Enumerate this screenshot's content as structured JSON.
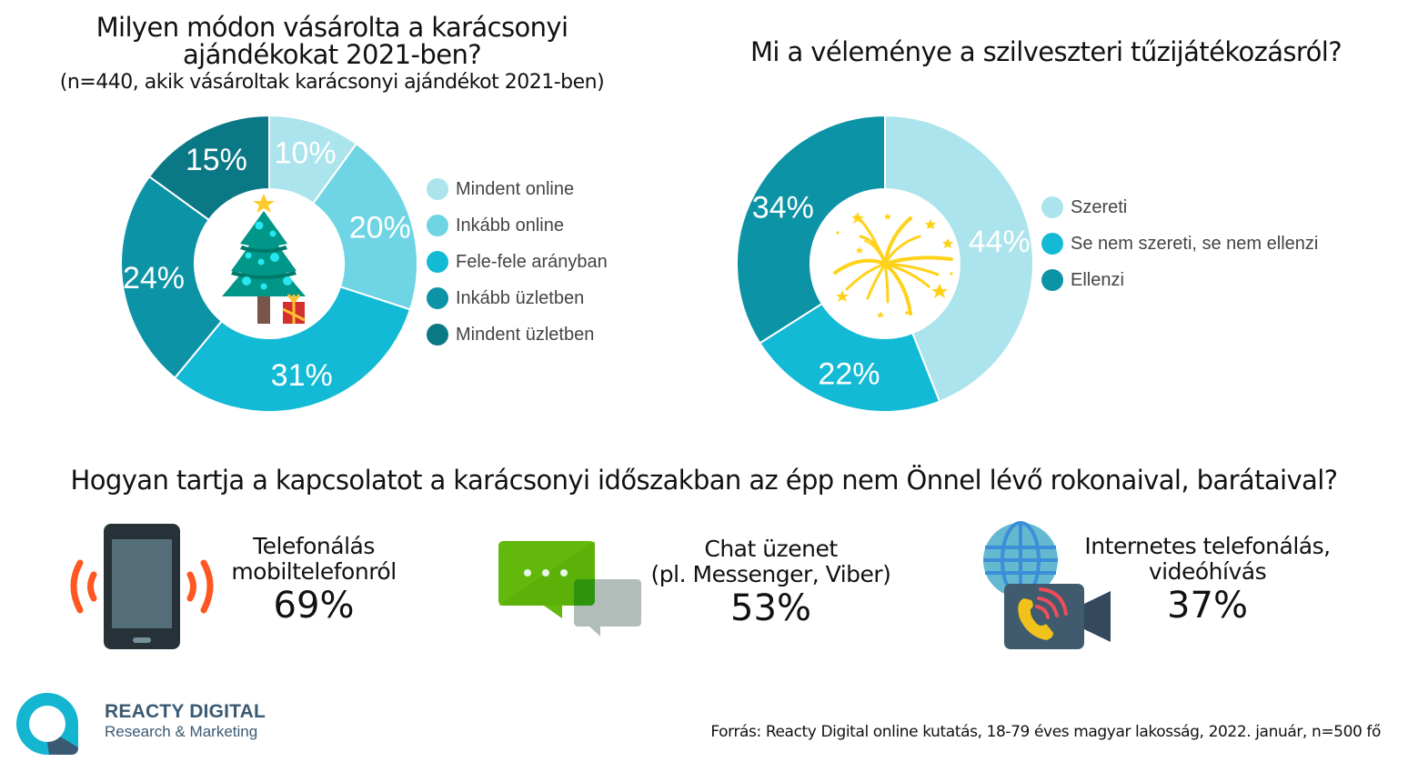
{
  "chart_data": [
    {
      "type": "pie",
      "variant": "donut",
      "title": "Milyen módon vásárolta a karácsonyi ajándékokat 2021-ben?",
      "title_lines": [
        "Milyen módon vásárolta a karácsonyi",
        "ajándékokat 2021-ben?"
      ],
      "subtitle": "(n=440, akik vásároltak karácsonyi ajándékot 2021-ben)",
      "categories": [
        "Mindent online",
        "Inkább online",
        "Fele-fele arányban",
        "Inkább üzletben",
        "Mindent üzletben"
      ],
      "values": [
        10,
        20,
        31,
        24,
        15
      ],
      "labels": [
        "10%",
        "20%",
        "31%",
        "24%",
        "15%"
      ],
      "colors": [
        "#abe4ec",
        "#6fd5e4",
        "#13bad6",
        "#0d93a6",
        "#0b7886"
      ],
      "center_icon": "christmas-tree-icon",
      "legend_position": "right"
    },
    {
      "type": "pie",
      "variant": "donut",
      "title": "Mi a véleménye a szilveszteri tűzijátékozásról?",
      "categories": [
        "Szereti",
        "Se nem szereti, se nem ellenzi",
        "Ellenzi"
      ],
      "values": [
        44,
        22,
        34
      ],
      "labels": [
        "44%",
        "22%",
        "34%"
      ],
      "colors": [
        "#abe4ec",
        "#13bad6",
        "#0d93a6"
      ],
      "center_icon": "fireworks-icon",
      "legend_position": "right"
    }
  ],
  "contact": {
    "title": "Hogyan tartja a kapcsolatot a karácsonyi időszakban az épp nem Önnel lévő rokonaival, barátaival?",
    "items": [
      {
        "icon": "mobile-phone-icon",
        "label_lines": [
          "Telefonálás",
          "mobiltelefonról"
        ],
        "value": "69%"
      },
      {
        "icon": "chat-bubbles-icon",
        "label_lines": [
          "Chat üzenet",
          "(pl. Messenger, Viber)"
        ],
        "value": "53%"
      },
      {
        "icon": "video-call-icon",
        "label_lines": [
          "Internetes telefonálás,",
          "videóhívás"
        ],
        "value": "37%"
      }
    ]
  },
  "brand": {
    "name": "REACTY DIGITAL",
    "tagline": "Research & Marketing",
    "colors": {
      "primary": "#14b5d0",
      "dark": "#3a5a73"
    }
  },
  "source": "Forrás: Reacty Digital online kutatás, 18-79 éves magyar lakosság, 2022. január, n=500 fő"
}
